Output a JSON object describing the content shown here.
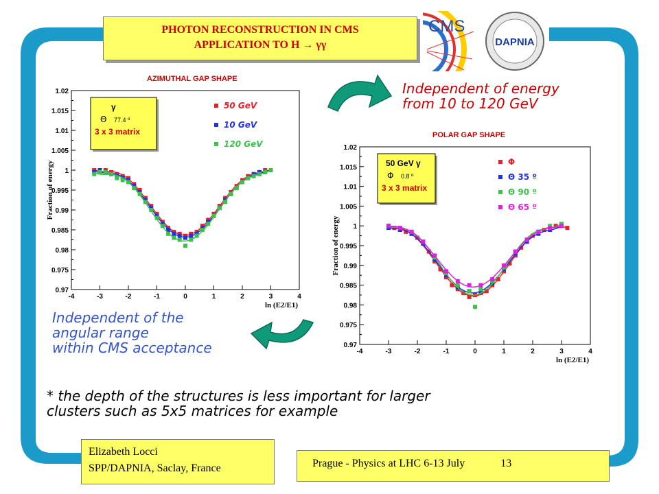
{
  "slide": {
    "title_line1": "PHOTON RECONSTRUCTION IN CMS",
    "title_line2": "APPLICATION TO H → γγ",
    "logo_cms_text": "CMS",
    "logo_dapnia_text": "DAPNIA",
    "note_energy_line1": "Independent of energy",
    "note_energy_line2": "from 10 to 120 GeV",
    "note_angular_line1": "Independent of the",
    "note_angular_line2": "angular range",
    "note_angular_line3": "within CMS acceptance",
    "note_depth_line1": "* the depth of the structures is less important for larger",
    "note_depth_line2": "clusters such as 5x5  matrices for example",
    "author_line1": "Elizabeth Locci",
    "author_line2": "SPP/DAPNIA, Saclay, France",
    "conference": "Prague - Physics at LHC 6-13 July",
    "page_number": "13",
    "colors": {
      "frame": "#1a9bc9",
      "box": "#ffff66",
      "arrow": "#0f9a7a",
      "title": "#cc0000"
    }
  },
  "chart_data": [
    {
      "type": "scatter",
      "title": "AZIMUTHAL GAP SHAPE",
      "xlabel": "ln (E2/E1)",
      "ylabel": "Fraction of energy",
      "xlim": [
        -4,
        4
      ],
      "ylim": [
        0.97,
        1.02
      ],
      "xticks": [
        "-4",
        "-3",
        "-2",
        "-1",
        "0",
        "1",
        "2",
        "3",
        "4"
      ],
      "yticks": [
        "0.97",
        "0.975",
        "0.98",
        "0.985",
        "0.99",
        "0.995",
        "1",
        "1.005",
        "1.01",
        "1.015",
        "1.02"
      ],
      "inset": {
        "line1": "γ",
        "line2_symbol": "Θ",
        "line2_value": "77.4 º",
        "line3": "3 x 3 matrix"
      },
      "series": [
        {
          "name": "50 GeV",
          "color": "#e8202a",
          "x": [
            -3.2,
            -3.0,
            -2.8,
            -2.6,
            -2.4,
            -2.2,
            -2.0,
            -1.8,
            -1.6,
            -1.4,
            -1.2,
            -1.0,
            -0.8,
            -0.6,
            -0.4,
            -0.2,
            0.0,
            0.2,
            0.4,
            0.6,
            0.8,
            1.0,
            1.2,
            1.4,
            1.6,
            1.8,
            2.0,
            2.2,
            2.4,
            2.6,
            2.8,
            3.0
          ],
          "y": [
            1.0,
            1.0,
            1.0,
            0.9995,
            0.999,
            0.9985,
            0.998,
            0.9965,
            0.995,
            0.993,
            0.991,
            0.989,
            0.987,
            0.9855,
            0.9845,
            0.984,
            0.9835,
            0.984,
            0.9845,
            0.986,
            0.9875,
            0.989,
            0.991,
            0.993,
            0.9945,
            0.996,
            0.9975,
            0.9985,
            0.999,
            0.9995,
            1.0,
            1.0
          ]
        },
        {
          "name": "10 GeV",
          "color": "#2233dd",
          "x": [
            -3.2,
            -3.0,
            -2.8,
            -2.6,
            -2.4,
            -2.2,
            -2.0,
            -1.8,
            -1.6,
            -1.4,
            -1.2,
            -1.0,
            -0.8,
            -0.6,
            -0.4,
            -0.2,
            0.0,
            0.2,
            0.4,
            0.6,
            0.8,
            1.0,
            1.2,
            1.4,
            1.6,
            1.8,
            2.0,
            2.2,
            2.4,
            2.6,
            2.8,
            3.0
          ],
          "y": [
            0.9995,
            1.0,
            0.9995,
            0.999,
            0.9985,
            0.998,
            0.9975,
            0.996,
            0.9945,
            0.9925,
            0.9905,
            0.9885,
            0.9865,
            0.985,
            0.984,
            0.9835,
            0.983,
            0.9835,
            0.984,
            0.9855,
            0.987,
            0.9885,
            0.9905,
            0.9925,
            0.994,
            0.9955,
            0.997,
            0.998,
            0.999,
            0.9995,
            0.9995,
            1.0
          ]
        },
        {
          "name": "120 GeV",
          "color": "#3cc24a",
          "x": [
            -3.2,
            -3.0,
            -2.8,
            -2.6,
            -2.4,
            -2.2,
            -2.0,
            -1.8,
            -1.6,
            -1.4,
            -1.2,
            -1.0,
            -0.8,
            -0.6,
            -0.4,
            -0.2,
            0.0,
            0.2,
            0.4,
            0.6,
            0.8,
            1.0,
            1.2,
            1.4,
            1.6,
            1.8,
            2.0,
            2.2,
            2.4,
            2.6,
            2.8,
            3.0
          ],
          "y": [
            0.999,
            0.9995,
            0.9995,
            0.999,
            0.998,
            0.9975,
            0.997,
            0.9955,
            0.994,
            0.992,
            0.99,
            0.988,
            0.986,
            0.984,
            0.983,
            0.9825,
            0.981,
            0.9825,
            0.9835,
            0.985,
            0.9865,
            0.9885,
            0.9905,
            0.992,
            0.994,
            0.9955,
            0.997,
            0.998,
            0.9985,
            0.999,
            0.9995,
            1.0
          ]
        }
      ]
    },
    {
      "type": "scatter",
      "title": "POLAR GAP SHAPE",
      "xlabel": "ln (E2/E1)",
      "ylabel": "Fraction of energy",
      "xlim": [
        -4,
        4
      ],
      "ylim": [
        0.97,
        1.02
      ],
      "xticks": [
        "-4",
        "-3",
        "-2",
        "-1",
        "0",
        "1",
        "2",
        "3",
        "4"
      ],
      "yticks": [
        "0.97",
        "0.975",
        "0.98",
        "0.985",
        "0.99",
        "0.995",
        "1",
        "1.005",
        "1.01",
        "1.015",
        "1.02"
      ],
      "inset": {
        "line1": "50 GeV  γ",
        "line2_symbol": "Φ",
        "line2_value": "0.8 º",
        "line3": "3 x 3 matrix"
      },
      "series": [
        {
          "name": "Φ",
          "color": "#e8202a",
          "x": [
            -3.0,
            -2.8,
            -2.6,
            -2.4,
            -2.2,
            -2.0,
            -1.8,
            -1.6,
            -1.4,
            -1.2,
            -1.0,
            -0.8,
            -0.6,
            -0.4,
            -0.2,
            0.0,
            0.2,
            0.4,
            0.6,
            0.8,
            1.0,
            1.2,
            1.4,
            1.6,
            1.8,
            2.0,
            2.2,
            2.4,
            2.6,
            2.8,
            3.0,
            3.2
          ],
          "y": [
            1.0,
            0.9995,
            0.999,
            0.9985,
            0.998,
            0.997,
            0.9955,
            0.9935,
            0.991,
            0.989,
            0.987,
            0.985,
            0.984,
            0.983,
            0.982,
            0.9825,
            0.983,
            0.9835,
            0.985,
            0.9865,
            0.9885,
            0.9905,
            0.9925,
            0.9945,
            0.996,
            0.9975,
            0.9985,
            0.999,
            0.9995,
            1.0,
            1.0,
            0.9995
          ]
        },
        {
          "name": "Θ 35 º",
          "color": "#2233dd",
          "x": [
            -3.0,
            -2.6,
            -2.2,
            -1.8,
            -1.4,
            -1.0,
            -0.6,
            -0.2,
            0.2,
            0.6,
            1.0,
            1.4,
            1.8,
            2.2,
            2.6,
            3.0
          ],
          "y": [
            0.9995,
            0.999,
            0.998,
            0.9955,
            0.9915,
            0.9875,
            0.9845,
            0.9835,
            0.9835,
            0.9855,
            0.989,
            0.993,
            0.996,
            0.998,
            0.999,
            1.0
          ]
        },
        {
          "name": "Θ 90 º",
          "color": "#3cc24a",
          "x": [
            -3.0,
            -2.6,
            -2.2,
            -1.8,
            -1.4,
            -1.0,
            -0.6,
            -0.2,
            0.0,
            0.2,
            0.6,
            1.0,
            1.4,
            1.8,
            2.2,
            2.6,
            3.0
          ],
          "y": [
            1.0,
            0.9995,
            0.9985,
            0.996,
            0.992,
            0.988,
            0.985,
            0.9835,
            0.9795,
            0.984,
            0.986,
            0.9895,
            0.9935,
            0.9965,
            0.9985,
            1.0,
            1.0005
          ]
        },
        {
          "name": "Θ 65 º",
          "color": "#e020e0",
          "x": [
            -3.0,
            -2.6,
            -2.2,
            -1.8,
            -1.4,
            -1.0,
            -0.6,
            -0.2,
            0.2,
            0.6,
            1.0,
            1.4,
            1.8,
            2.2,
            2.6,
            3.0
          ],
          "y": [
            1.0,
            0.9995,
            0.9985,
            0.996,
            0.9925,
            0.9885,
            0.986,
            0.985,
            0.985,
            0.9865,
            0.99,
            0.9935,
            0.9965,
            0.9985,
            0.9995,
            1.0
          ]
        }
      ]
    }
  ]
}
